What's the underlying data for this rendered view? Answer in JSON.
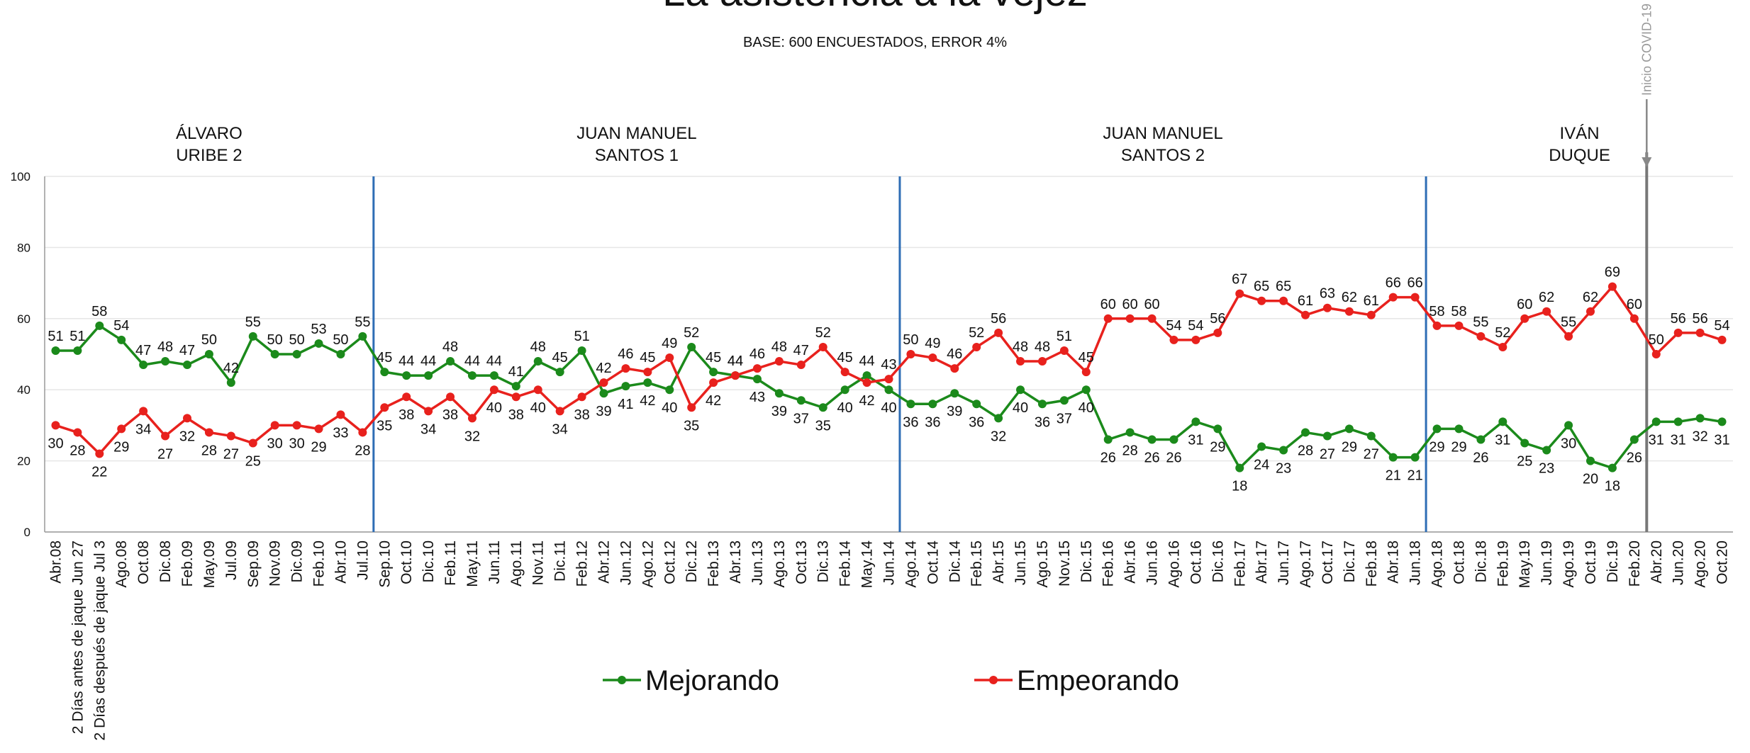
{
  "chart_data": {
    "type": "line",
    "title": "La asistencia a la vejez",
    "subtitle": "BASE: 600 ENCUESTADOS, ERROR 4%",
    "periods": [
      [
        "ÁLVARO",
        "URIBE 2"
      ],
      [
        "JUAN MANUEL",
        "SANTOS 1"
      ],
      [
        "JUAN MANUEL",
        "SANTOS 2"
      ],
      [
        "IVÁN",
        "DUQUE"
      ]
    ],
    "annotation": "Inicio COVID-19",
    "categories": [
      "Abr.08",
      "2 Días antes de jaque Jun 27",
      "2 Días después de jaque Jul 3",
      "Ago.08",
      "Oct.08",
      "Dic.08",
      "Feb.09",
      "May.09",
      "Jul.09",
      "Sep.09",
      "Nov.09",
      "Dic.09",
      "Feb.10",
      "Abr.10",
      "Jul.10",
      "Sep.10",
      "Oct.10",
      "Dic.10",
      "Feb.11",
      "May.11",
      "Jun.11",
      "Ago.11",
      "Nov.11",
      "Dic.11",
      "Feb.12",
      "Abr.12",
      "Jun.12",
      "Ago.12",
      "Oct.12",
      "Dic.12",
      "Feb.13",
      "Abr.13",
      "Jun.13",
      "Ago.13",
      "Oct.13",
      "Dic.13",
      "Feb.14",
      "May.14",
      "Jun.14",
      "Ago.14",
      "Oct.14",
      "Dic.14",
      "Feb.15",
      "Abr.15",
      "Jun.15",
      "Ago.15",
      "Nov.15",
      "Dic.15",
      "Feb.16",
      "Abr.16",
      "Jun.16",
      "Ago.16",
      "Oct.16",
      "Dic.16",
      "Feb.17",
      "Abr.17",
      "Jun.17",
      "Ago.17",
      "Oct.17",
      "Dic.17",
      "Feb.18",
      "Abr.18",
      "Jun.18",
      "Ago.18",
      "Oct.18",
      "Dic.18",
      "Feb.19",
      "May.19",
      "Jun.19",
      "Ago.19",
      "Oct.19",
      "Dic.19",
      "Feb.20",
      "Abr.20",
      "Jun.20",
      "Ago.20",
      "Oct.20"
    ],
    "series": [
      {
        "name": "Mejorando",
        "color": "#1b8a1b",
        "values": [
          51,
          51,
          58,
          54,
          47,
          48,
          47,
          50,
          42,
          55,
          50,
          50,
          53,
          50,
          55,
          45,
          44,
          44,
          48,
          44,
          44,
          41,
          48,
          45,
          51,
          39,
          41,
          42,
          40,
          52,
          45,
          44,
          43,
          39,
          37,
          35,
          40,
          44,
          40,
          36,
          36,
          39,
          36,
          32,
          40,
          36,
          37,
          40,
          26,
          28,
          26,
          26,
          31,
          29,
          18,
          24,
          23,
          28,
          27,
          29,
          27,
          21,
          21,
          29,
          29,
          26,
          31,
          25,
          23,
          30,
          20,
          18,
          26,
          31,
          31,
          32,
          31
        ]
      },
      {
        "name": "Empeorando",
        "color": "#e8211d",
        "values": [
          30,
          28,
          22,
          29,
          34,
          27,
          32,
          28,
          27,
          25,
          30,
          30,
          29,
          33,
          28,
          35,
          38,
          34,
          38,
          32,
          40,
          38,
          40,
          34,
          38,
          42,
          46,
          45,
          49,
          35,
          42,
          44,
          46,
          48,
          47,
          52,
          45,
          42,
          43,
          50,
          49,
          46,
          52,
          56,
          48,
          48,
          51,
          45,
          60,
          60,
          60,
          54,
          54,
          56,
          67,
          65,
          65,
          61,
          63,
          62,
          61,
          66,
          66,
          58,
          58,
          55,
          52,
          60,
          62,
          55,
          62,
          69,
          60,
          50,
          56,
          56,
          54
        ]
      }
    ],
    "ylim": [
      0,
      100
    ],
    "yticks": [
      0,
      20,
      40,
      60,
      80,
      100
    ],
    "grid": true
  }
}
